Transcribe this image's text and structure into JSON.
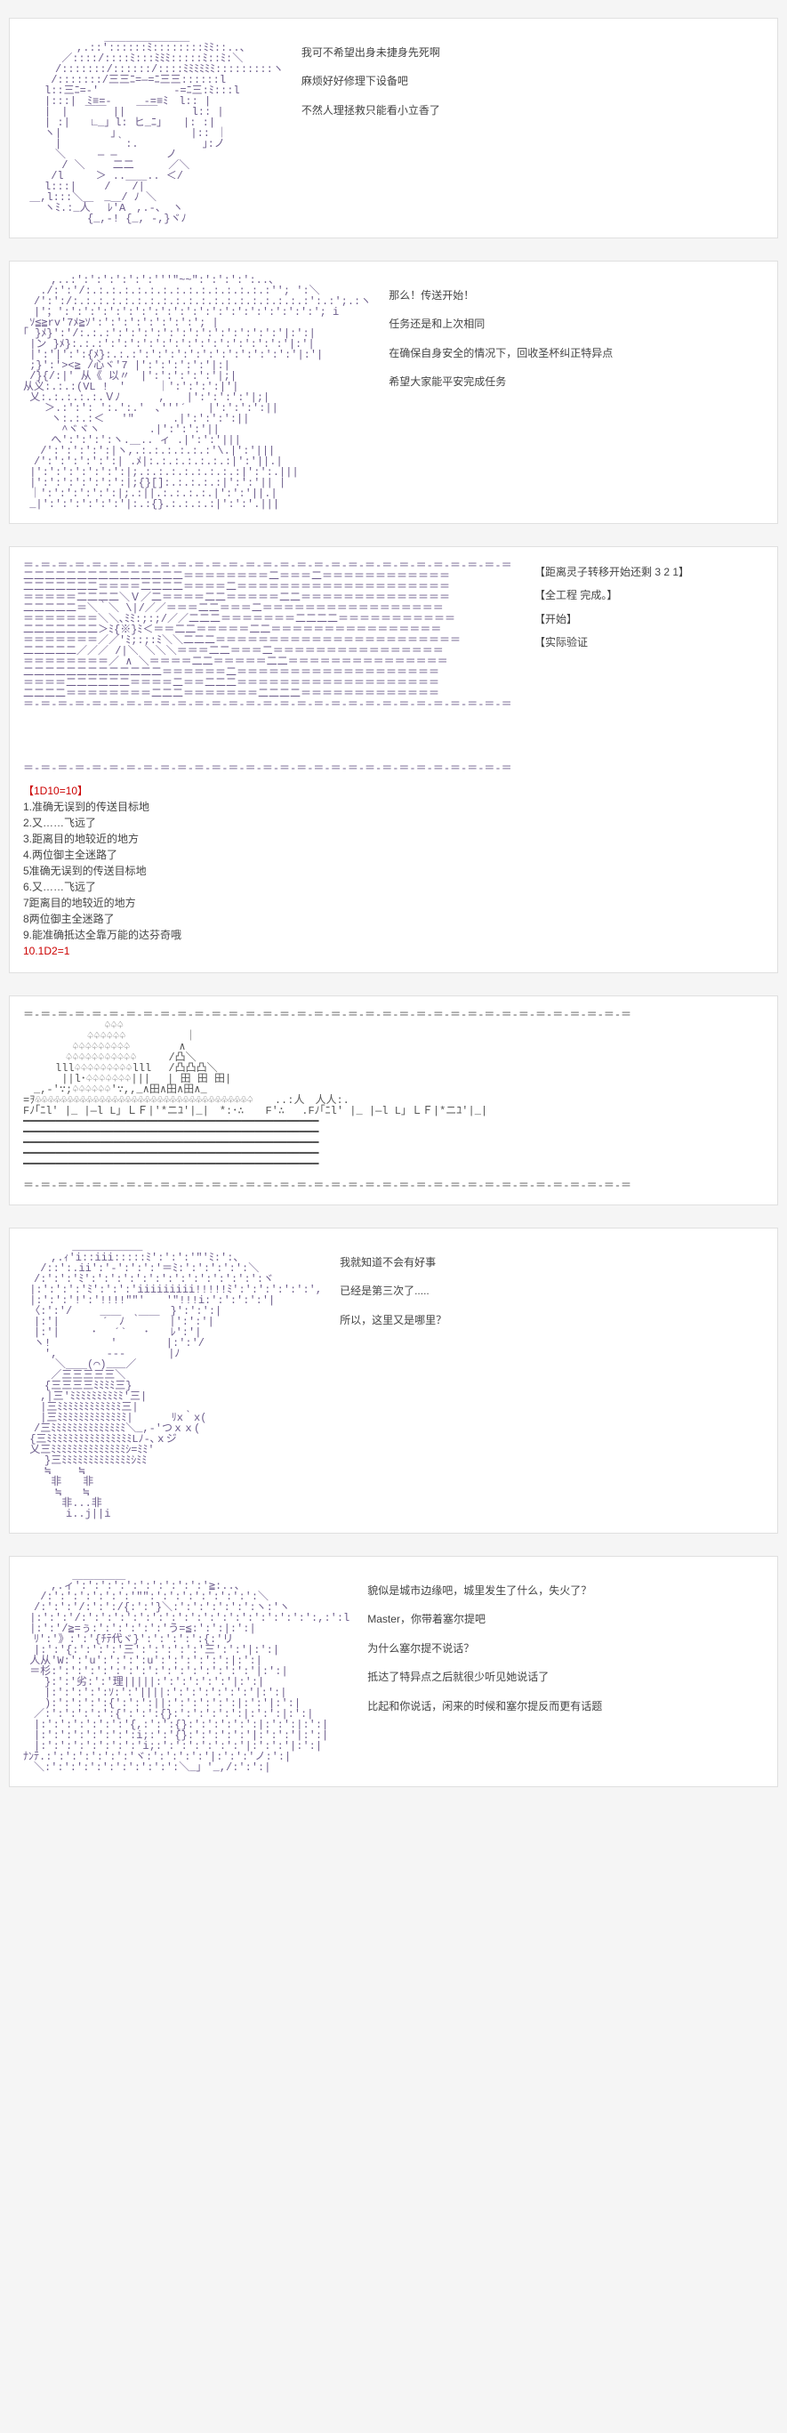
{
  "panels": [
    {
      "art_key": "face1",
      "lines": [
        "我可不希望出身未捷身先死啊",
        "麻烦好好修理下设备吧",
        "不然人理拯救只能看小立香了"
      ]
    },
    {
      "art_key": "girl1",
      "lines": [
        "那么！传送开始！",
        "任务还是和上次相同",
        "在确保自身安全的情况下，回收圣杯纠正特异点",
        "希望大家能平安完成任务"
      ]
    },
    {
      "art_key": "explosion",
      "side": [
        "【距离灵子转移开始还剩 3 2 1】",
        "【全工程 完成。】",
        "【开始】",
        "【实际验证"
      ],
      "roll": {
        "head": "【1D10=10】",
        "items": [
          "1.准确无误到的传送目标地",
          "2.又……飞远了",
          "3.距离目的地较近的地方",
          "4.两位御主全迷路了",
          "5准确无误到的传送目标地",
          "6.又……飞远了",
          "7距离目的地较近的地方",
          "8两位御主全迷路了",
          "9.能准确抵达全靠万能的达芬奇哦"
        ],
        "tail": "10.1D2=1"
      }
    },
    {
      "art_key": "castle",
      "lines": []
    },
    {
      "art_key": "face2",
      "lines": [
        "我就知道不会有好事",
        "已经是第三次了.....",
        "所以，这里又是哪里？"
      ]
    },
    {
      "art_key": "girl2",
      "lines": [
        "貌似是城市边缘吧，城里发生了什么，失火了？",
        "Master，你带着塞尔提吧",
        "为什么塞尔提不说话？",
        "抵达了特异点之后就很少听见她说话了",
        "比起和你说话，闲来的时候和塞尔提反而更有话题"
      ]
    }
  ],
  "colors": {
    "ascii": "#6a5a8a",
    "text": "#444444",
    "red": "#cc0000",
    "bg": "#f5f5f5",
    "panel": "#ffffff"
  },
  "ascii": {
    "face1": "　　　　　　　 ＿＿＿＿＿＿＿＿\n　　　　　,.::'::::::ﾐ::::::::ﾐﾐ::..、\n　　　 ／::::/::::ﾐ:::ﾐﾐﾐ:::::ﾐ::ﾐ:＼\n　　　/:::::::/::::::/::::ﾐﾐﾐﾐﾐﾐ:::::::::ヽ\n　　 /:::::::/三三ﾆ=―=ﾆ三三::::::l\n　　l::三ﾆ=-'　　　　　　　-=ﾆ三:ﾐ:::l\n　　|:::|　ﾐ≡=-　　　-=≡ﾐ　l:: |\n　　|　|　 ￣￣ ||　￣￣ 　　 l:: |\n　　| :|　　∟_」l: ヒ_ﾆ｣　　|: :|\n　　ヽ|　　　　 ｣　　　　　　　|:: ｜\n　　　|　　　　　｀:.　　　　　　｣:ノ\n　　　＼　　　― ―　　　　 ノ\n　 　　/ ＼　　 二二 　　 ／＼\n　　 /l　　　＞ ..＿＿.. ＜/\n　　l:::|　　 /　　/|\n ＿,l:::＼＿　_＿/ ﾉ ＼\n　　ヽﾐ.:_人　 ﾚ'A　,.-、 ヽ\n　　　　　　{_,-! {_, -,}ヾﾉ",
    "girl1": "　　 ,..:':':':':':':'''\"~~\":':':':':..、\n　 ./:':'/:.:.:.:.:.:.:.:.:.:.:.:.:.:.:''; ':＼\n　/':':/:.:.:.:.:.:.:.:.:.:.:.:.:.:.:.:.:.:.:':.:';.:ヽ\n　|'；':':':':':':':':':':':':':':':':':':':':'; i\n ｿ≦≧rv'7ﾒ≧ｿ':':':':':':':':'; |\n｢ }ﾒ}':'/:.:.:':':':':':':':':':':':':':'|:':|\n |ン }ﾒ}:.:.:':':':':':':':':':':':':':':'|:'|\n |':'|':':{ﾒ}:.:.:':':':':':':':':':':':':'|:'|\n ;}':'><≧ /心ヾ'7 |':':':':':'|:|\n /}{/:|' 从《 以〃　|':':':':':'|;|\n从义:.:.:(VL !　′　　　｜':':':':|'|\n 乂:.:.:.:.:.Ｖﾉ　　　 ,　　|':':':':'|;|\n　　＞.:':': ':.':.'　､'''´　　|':':':':||\n　　 ヽ:.:.:＜　 '\"　　　 .|':':':':||\n　　 　^ヾヾヽ　　　　 .|':':':'||\n　　 へ':':':':ヽ.＿.. ィ .|':':'|||\n　 /':':':':':|ヽ,.:.:.:.:.:.:'\\.|':'|||\n　/':':':':':':| .ﾒ|:.:.:.:.:.:.:|':'||.|\n |':':':':':':':|;.:.:.:.:.:.:.:.:|':':.|||\n |':':':':':':':|;{}[]:.:.:.:.:|':':'|| |\n ｜':':':':':':|;.:||.:.:.:.:.|':':'||.|\n _|':':':':':':'|:.:{}.:.:.:.:|':':'.|||",
    "explosion": "＝-＝-＝-＝-＝-＝-＝-＝-＝-＝-＝-＝-＝-＝-＝-＝-＝-＝-＝-＝-＝-＝-＝-＝-＝-＝-＝-＝-＝\n二二二二二二二二二二二二二二二＝＝＝＝＝＝＝＝二＝＝＝二＝＝＝＝＝＝＝＝＝＝＝＝\n二二二二二二二＝＝＝＝二二二二＝＝＝＝二＝＝＝＝＝＝＝＝＝＝＝＝＝＝＝＝＝＝＝＝\n＝＝＝＝＝二二二二＼Ｖ／二＝＝＝＝二二＝＝＝＝＝二二＝＝＝＝＝＝＝＝＝＝＝＝＝＝\n二二二二二＝＼｀＼ \\|/／／＝＝＝二二＝＝＝二＝＝＝＝＝＝＝＝＝＝＝＝＝＝＝＝＝\n＝＝＝＝＝＝＝＼＼､ﾐﾐ:;:;/／／二二二＝＝＝＝＝＝＝二二二二＝＝＝＝＝＝＝＝＝＝＝\n二二二二二二二＞ﾐ{※}ﾐ＜＝＝二二＝＝＝＝＝二二＝＝＝＝＝＝＝＝＝＝＝＝＝＝＝＝\n＝＝＝＝＝＝＝／／'ﾐ;:;:ﾐ＼＼二二二＝＝＝＝＝＝＝＝＝＝＝＝＝＝＝＝＝＝＝＝＝＝＝\n二二二二二／／／ /|＼ ＼＼＼＝＝＝二二＝＝＝二＝＝＝＝＝＝＝＝＝＝＝＝＝＝＝＝\n＝＝＝＝＝＝＝＝／ ∧ ＼＝＝＝＝二二＝＝＝＝＝二二＝＝＝＝＝＝＝＝＝＝＝＝＝＝＝\n二二二二二二二二二二二二二＝＝＝＝＝＝二＝＝＝＝＝＝＝＝＝＝＝＝＝＝＝＝＝＝＝\n＝＝＝＝二二二二二二＝＝＝＝二＝＝二二二＝＝＝＝＝＝＝＝＝＝＝＝＝＝＝＝＝＝＝\n二二二二＝＝＝＝＝＝＝＝二二二＝＝＝＝＝＝＝二二二二＝＝＝＝＝＝＝＝＝＝＝＝＝\n＝-＝-＝-＝-＝-＝-＝-＝-＝-＝-＝-＝-＝-＝-＝-＝-＝-＝-＝-＝-＝-＝-＝-＝-＝-＝-＝-＝-＝\n\n\n\n\n\n＝-＝-＝-＝-＝-＝-＝-＝-＝-＝-＝-＝-＝-＝-＝-＝-＝-＝-＝-＝-＝-＝-＝-＝-＝-＝-＝-＝-＝",
    "castle": "＝-＝-＝-＝-＝-＝-＝-＝-＝-＝-＝-＝-＝-＝-＝-＝-＝-＝-＝-＝-＝-＝-＝-＝-＝-＝-＝-＝-＝-＝-＝-＝-＝-＝-＝-＝\n　　　　　　　 ♤♤♤\n　　　　　　♤♤♤♤♤♤　　　　　 ｜\n　　　　 ♤♤♤♤♤♤♤♤♤　　　　 ∧\n　　　　♤♤♤♤♤♤♤♤♤♤♤　　　/凸＼\n　　　lll♤♤♤♤♤♤♤♤♤lll　 /凸凸凸＼\n　　　 ||l･♤♤♤♤♤♤♤|||　 | 田 田 田|\n　_,-'∵;♤♤♤♤♤♤'∵,,_∧田∧田∧田∧_\n=ｦ♧♧♧♧♧♧♧♧♧♧♧♧♧♧♧♧♧♧♧♧♧♧♧♧♧♧♧♧♧♧♧♧♧♤　　..:人　人人:.\nFﾉ｢ﾆl' |_ |―l L」ＬＦ|'*ニﾕ'|_|　*:･∴　　F'∴　 .Fﾉ｢ﾆl' |_ |―l L」ＬＦ|*ニﾕ'|_|\n━━━━━━━━━━━━━━━━━━━━━━━━━━━━━━━━━━━━━━━━━━━━━━\n━━━━━━━━━━━━━━━━━━━━━━━━━━━━━━━━━━━━━━━━━━━━━━\n━━━━━━━━━━━━━━━━━━━━━━━━━━━━━━━━━━━━━━━━━━━━━━\n━━━━━━━━━━━━━━━━━━━━━━━━━━━━━━━━━━━━━━━━━━━━━━\n━━━━━━━━━━━━━━━━━━━━━━━━━━━━━━━━━━━━━━━━━━━━━━\n\n＝-＝-＝-＝-＝-＝-＝-＝-＝-＝-＝-＝-＝-＝-＝-＝-＝-＝-＝-＝-＝-＝-＝-＝-＝-＝-＝-＝-＝-＝-＝-＝-＝-＝-＝-＝",
    "face2": "　　　　 ___________\n　　 ,.ｨ'i::iii:::::ﾐ':':':'\"'ﾐ:':、\n　 /::':.ii':'-':':':'＝ﾐ:':':':':':＼\n　/:':':'ﾐ':':':':':':':':':':':':':':ヾ\n |:':':':'ﾐ':':':'iiiiiiiii!!!!!ﾐ':':':':':':',\n |:':':'!':'!!!!\"\"'　　'\"!!!i:':':':':'|\n 〈:':'/　　 ＿＿　 ＿＿　}':':':|\n　|:'|　　　　´　ﾉ ｀　　 |':':'|\n　|:'|　　　･　 ´` 　･　　ﾚ':'|\n　ヽ!　　　　　 '　　　　 |:':'/\n　　',　　　　 -‐-　　　　|ﾉ\n　　　＼＿＿(⌒)___／\n　　 ／三三三三三＼\n　　{三三三三ﾐﾐﾐﾐ三}\n　 ,|三'ﾐﾐﾐﾐﾐﾐﾐﾐﾐﾐ'三|\n　 |三ﾐﾐﾐﾐﾐﾐﾐﾐﾐﾐﾐﾐ三|\n　 |三ﾐﾐﾐﾐﾐﾐﾐﾐﾐﾐﾐﾐﾐ|　　　 ﾘx｀x(\n　/三ﾐﾐﾐﾐﾐﾐﾐﾐﾐﾐﾐﾐﾐﾐ＼_,-'つｘｘ(\n {三ﾐﾐﾐﾐﾐﾐﾐﾐﾐﾐﾐﾐﾐﾐﾐﾐLﾉ-､ｘジ\n 乂三ﾐﾐﾐﾐﾐﾐﾐﾐﾐﾐﾐﾐﾐﾐｼ=ﾐﾐ'\n　　}三ﾐﾐﾐﾐﾐﾐﾐﾐﾐﾐﾐﾐﾐｼﾐﾐ\n　　≒　　 ≒\n　　 非　　非\n　　　≒　　≒\n　　　 非...非\n　　　　i..j||i",
    "girl2": "　　　　 ＿＿＿＿＿\n　　 ,.ィ':':':':':':':':':':'≧:..、\n　 /:':':':':':':'\"\":':':':':':':':':＼\n　/:':':'/:':':/{:':'}＼:':':':':':':ヽ:'ヽ\n |:':':'/:':':':':':':':':':':':':':':':':':':,:':l\n |:':'/≧=ぅ:':':':':':'う=≦:':':|:':|\n　ﾘ':'》:':'{ﾁﾃ代ヾ}':':':':':{:'リ\n　|:':'{:':':':'三':':':':':'三':':'|:':|\n 人从'W:':'u':':':':u':':':':':':|:':|\n ＝杉:':':':':':':':':':':':':':':':'|:':|\n　　}:':'劣:':'理|||||:':':':':':'|:':|\n　　|:':':':':ｿ:':'||||:':':':':':':'|:':|\n　　):':':':':{':':':||:':':':':':|:':'|:':|\n　／:':':':':':{':':':{}:':':':':':|:':':|:':|\n　|:':':':':':':'{,:':':{}:':':':':':|:':':|:':|\n　|:':':':':':':':i;:':'{}:':':':':'|:':':'|:':|\n　|:':':':':':':':'i;:':':':':':':'|:':':'|:':|\nﾅﾝﾃ.:':':':':':':'ヾ:':':':':'|:':':'ノ:':|\n　＼:':':':':':':':':':':＼_」'_,/:':':|"
  }
}
